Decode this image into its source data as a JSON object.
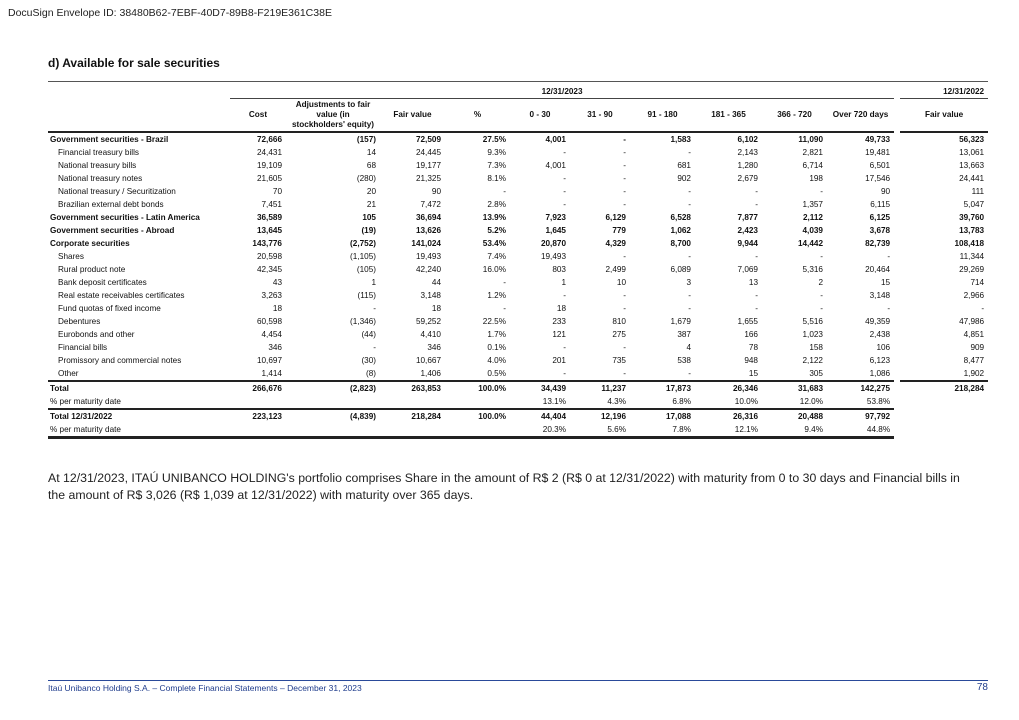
{
  "envelope": "DocuSign Envelope ID: 38480B62-7EBF-40D7-89B8-F219E361C38E",
  "section_title": "d) Available for sale securities",
  "table": {
    "date_current": "12/31/2023",
    "date_prior": "12/31/2022",
    "columns": [
      "Cost",
      "Adjustments to fair value (in stockholders' equity)",
      "Fair value",
      "%",
      "0 - 30",
      "31 - 90",
      "91 - 180",
      "181 - 365",
      "366 - 720",
      "Over 720 days",
      "Fair value"
    ],
    "rows": [
      {
        "label": "Government securities - Brazil",
        "type": "group",
        "values": [
          "72,666",
          "(157)",
          "72,509",
          "27.5%",
          "4,001",
          "-",
          "1,583",
          "6,102",
          "11,090",
          "49,733",
          "56,323"
        ]
      },
      {
        "label": "Financial treasury bills",
        "type": "item",
        "values": [
          "24,431",
          "14",
          "24,445",
          "9.3%",
          "-",
          "-",
          "-",
          "2,143",
          "2,821",
          "19,481",
          "13,061"
        ]
      },
      {
        "label": "National treasury bills",
        "type": "item",
        "values": [
          "19,109",
          "68",
          "19,177",
          "7.3%",
          "4,001",
          "-",
          "681",
          "1,280",
          "6,714",
          "6,501",
          "13,663"
        ]
      },
      {
        "label": "National treasury notes",
        "type": "item",
        "values": [
          "21,605",
          "(280)",
          "21,325",
          "8.1%",
          "-",
          "-",
          "902",
          "2,679",
          "198",
          "17,546",
          "24,441"
        ]
      },
      {
        "label": "National treasury / Securitization",
        "type": "item",
        "values": [
          "70",
          "20",
          "90",
          "-",
          "-",
          "-",
          "-",
          "-",
          "-",
          "90",
          "111"
        ]
      },
      {
        "label": "Brazilian external debt bonds",
        "type": "item",
        "values": [
          "7,451",
          "21",
          "7,472",
          "2.8%",
          "-",
          "-",
          "-",
          "-",
          "1,357",
          "6,115",
          "5,047"
        ]
      },
      {
        "label": "Government securities - Latin America",
        "type": "group",
        "values": [
          "36,589",
          "105",
          "36,694",
          "13.9%",
          "7,923",
          "6,129",
          "6,528",
          "7,877",
          "2,112",
          "6,125",
          "39,760"
        ]
      },
      {
        "label": "Government securities - Abroad",
        "type": "group",
        "values": [
          "13,645",
          "(19)",
          "13,626",
          "5.2%",
          "1,645",
          "779",
          "1,062",
          "2,423",
          "4,039",
          "3,678",
          "13,783"
        ]
      },
      {
        "label": "Corporate securities",
        "type": "group",
        "values": [
          "143,776",
          "(2,752)",
          "141,024",
          "53.4%",
          "20,870",
          "4,329",
          "8,700",
          "9,944",
          "14,442",
          "82,739",
          "108,418"
        ]
      },
      {
        "label": "Shares",
        "type": "item",
        "values": [
          "20,598",
          "(1,105)",
          "19,493",
          "7.4%",
          "19,493",
          "-",
          "-",
          "-",
          "-",
          "-",
          "11,344"
        ]
      },
      {
        "label": "Rural product note",
        "type": "item",
        "values": [
          "42,345",
          "(105)",
          "42,240",
          "16.0%",
          "803",
          "2,499",
          "6,089",
          "7,069",
          "5,316",
          "20,464",
          "29,269"
        ]
      },
      {
        "label": "Bank deposit certificates",
        "type": "item",
        "values": [
          "43",
          "1",
          "44",
          "-",
          "1",
          "10",
          "3",
          "13",
          "2",
          "15",
          "714"
        ]
      },
      {
        "label": "Real estate receivables certificates",
        "type": "item",
        "values": [
          "3,263",
          "(115)",
          "3,148",
          "1.2%",
          "-",
          "-",
          "-",
          "-",
          "-",
          "3,148",
          "2,966"
        ]
      },
      {
        "label": "Fund quotas of fixed income",
        "type": "item",
        "values": [
          "18",
          "-",
          "18",
          "-",
          "18",
          "-",
          "-",
          "-",
          "-",
          "-",
          "-"
        ]
      },
      {
        "label": "Debentures",
        "type": "item",
        "values": [
          "60,598",
          "(1,346)",
          "59,252",
          "22.5%",
          "233",
          "810",
          "1,679",
          "1,655",
          "5,516",
          "49,359",
          "47,986"
        ]
      },
      {
        "label": "Eurobonds and other",
        "type": "item",
        "values": [
          "4,454",
          "(44)",
          "4,410",
          "1.7%",
          "121",
          "275",
          "387",
          "166",
          "1,023",
          "2,438",
          "4,851"
        ]
      },
      {
        "label": "Financial bills",
        "type": "item",
        "values": [
          "346",
          "-",
          "346",
          "0.1%",
          "-",
          "-",
          "4",
          "78",
          "158",
          "106",
          "909"
        ]
      },
      {
        "label": "Promissory and commercial notes",
        "type": "item",
        "values": [
          "10,697",
          "(30)",
          "10,667",
          "4.0%",
          "201",
          "735",
          "538",
          "948",
          "2,122",
          "6,123",
          "8,477"
        ]
      },
      {
        "label": "Other",
        "type": "item",
        "values": [
          "1,414",
          "(8)",
          "1,406",
          "0.5%",
          "-",
          "-",
          "-",
          "15",
          "305",
          "1,086",
          "1,902"
        ]
      },
      {
        "label": "Total",
        "type": "total",
        "values": [
          "266,676",
          "(2,823)",
          "263,853",
          "100.0%",
          "34,439",
          "11,237",
          "17,873",
          "26,346",
          "31,683",
          "142,275",
          "218,284"
        ]
      },
      {
        "label": "% per maturity date",
        "type": "pct",
        "values": [
          "",
          "",
          "",
          "",
          "13.1%",
          "4.3%",
          "6.8%",
          "10.0%",
          "12.0%",
          "53.8%",
          ""
        ]
      },
      {
        "label": "Total  12/31/2022",
        "type": "total",
        "values": [
          "223,123",
          "(4,839)",
          "218,284",
          "100.0%",
          "44,404",
          "12,196",
          "17,088",
          "26,316",
          "20,488",
          "97,792",
          ""
        ]
      },
      {
        "label": "% per maturity date",
        "type": "lastpct",
        "values": [
          "",
          "",
          "",
          "",
          "20.3%",
          "5.6%",
          "7.8%",
          "12.1%",
          "9.4%",
          "44.8%",
          ""
        ]
      }
    ]
  },
  "paragraph": "At 12/31/2023, ITAÚ UNIBANCO HOLDING's portfolio comprises Share in the amount of R$ 2 (R$ 0 at 12/31/2022) with maturity from 0 to 30 days and Financial bills in the amount of R$ 3,026  (R$ 1,039 at 12/31/2022) with maturity over 365 days.",
  "footer": {
    "text": "Itaú Unibanco Holding S.A. – Complete Financial Statements – December 31, 2023",
    "page": "78"
  }
}
